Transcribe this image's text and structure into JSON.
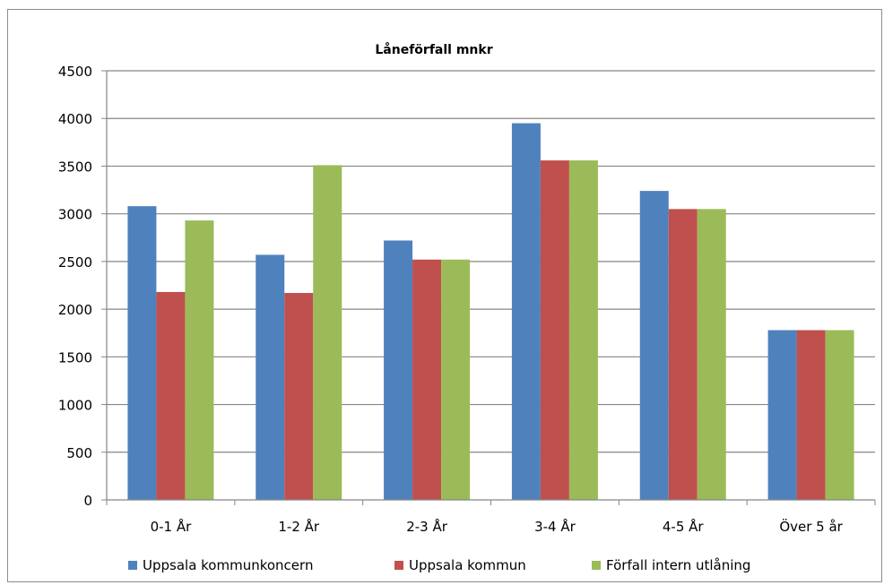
{
  "chart_data": {
    "type": "bar",
    "title": "Låneförfall mnkr",
    "xlabel": "",
    "ylabel": "",
    "categories": [
      "0-1 År",
      "1-2 År",
      "2-3 År",
      "3-4 År",
      "4-5 År",
      "Över 5 år"
    ],
    "series": [
      {
        "name": "Uppsala kommunkoncern",
        "color": "#4f81bd",
        "values": [
          3080,
          2570,
          2720,
          3950,
          3240,
          1780
        ]
      },
      {
        "name": "Uppsala kommun",
        "color": "#c0504d",
        "values": [
          2180,
          2170,
          2520,
          3560,
          3050,
          1780
        ]
      },
      {
        "name": "Förfall intern utlåning",
        "color": "#9bbb59",
        "values": [
          2930,
          3510,
          2520,
          3560,
          3050,
          1780
        ]
      }
    ],
    "ylim": [
      0,
      4500
    ],
    "yticks": [
      0,
      500,
      1000,
      1500,
      2000,
      2500,
      3000,
      3500,
      4000,
      4500
    ],
    "grid": true,
    "legend_position": "bottom"
  }
}
